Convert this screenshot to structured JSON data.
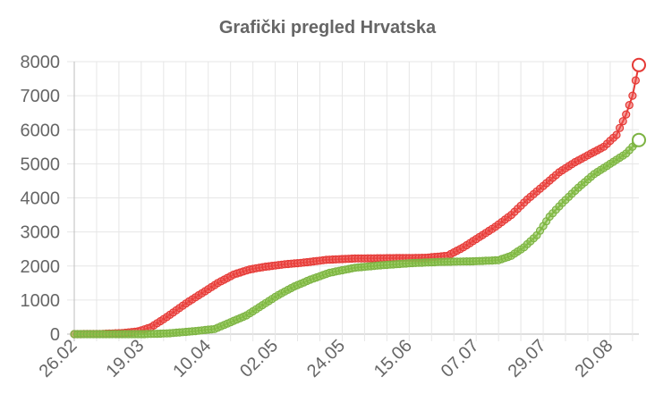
{
  "chart_data": {
    "type": "line",
    "title": "Grafički pregled Hrvatska",
    "xlabel": "",
    "ylabel": "",
    "ylim": [
      0,
      8000
    ],
    "yticks": [
      "0",
      "1000",
      "2000",
      "3000",
      "4000",
      "5000",
      "6000",
      "7000",
      "8000"
    ],
    "xticks": [
      "26.02",
      "19.03",
      "10.04",
      "02.05",
      "24.05",
      "15.06",
      "07.07",
      "29.07",
      "20.08"
    ],
    "x_start": "2020-02-26",
    "x_end": "2020-08-21",
    "grid": true,
    "legend": "none",
    "series": [
      {
        "color": "#e53935",
        "fill": "rgba(239,83,80,0.55)",
        "points": [
          [
            "2020-02-26",
            0
          ],
          [
            "2020-03-05",
            5
          ],
          [
            "2020-03-12",
            30
          ],
          [
            "2020-03-17",
            80
          ],
          [
            "2020-03-21",
            200
          ],
          [
            "2020-03-26",
            500
          ],
          [
            "2020-04-01",
            900
          ],
          [
            "2020-04-06",
            1200
          ],
          [
            "2020-04-11",
            1500
          ],
          [
            "2020-04-16",
            1750
          ],
          [
            "2020-04-21",
            1900
          ],
          [
            "2020-04-26",
            1980
          ],
          [
            "2020-05-02",
            2050
          ],
          [
            "2020-05-08",
            2100
          ],
          [
            "2020-05-15",
            2180
          ],
          [
            "2020-05-24",
            2220
          ],
          [
            "2020-06-05",
            2230
          ],
          [
            "2020-06-15",
            2240
          ],
          [
            "2020-06-22",
            2300
          ],
          [
            "2020-06-27",
            2550
          ],
          [
            "2020-07-02",
            2850
          ],
          [
            "2020-07-07",
            3150
          ],
          [
            "2020-07-12",
            3500
          ],
          [
            "2020-07-17",
            3950
          ],
          [
            "2020-07-22",
            4350
          ],
          [
            "2020-07-27",
            4750
          ],
          [
            "2020-08-01",
            5050
          ],
          [
            "2020-08-06",
            5300
          ],
          [
            "2020-08-10",
            5500
          ],
          [
            "2020-08-14",
            5850
          ],
          [
            "2020-08-17",
            6450
          ],
          [
            "2020-08-19",
            7000
          ],
          [
            "2020-08-21",
            7900
          ]
        ]
      },
      {
        "color": "#7cb342",
        "fill": "rgba(139,195,74,0.55)",
        "points": [
          [
            "2020-02-26",
            0
          ],
          [
            "2020-03-19",
            0
          ],
          [
            "2020-03-26",
            20
          ],
          [
            "2020-04-03",
            80
          ],
          [
            "2020-04-10",
            150
          ],
          [
            "2020-04-15",
            350
          ],
          [
            "2020-04-20",
            550
          ],
          [
            "2020-04-25",
            850
          ],
          [
            "2020-04-30",
            1150
          ],
          [
            "2020-05-05",
            1400
          ],
          [
            "2020-05-10",
            1600
          ],
          [
            "2020-05-16",
            1800
          ],
          [
            "2020-05-24",
            1950
          ],
          [
            "2020-06-01",
            2020
          ],
          [
            "2020-06-10",
            2080
          ],
          [
            "2020-06-20",
            2120
          ],
          [
            "2020-07-01",
            2140
          ],
          [
            "2020-07-08",
            2170
          ],
          [
            "2020-07-12",
            2300
          ],
          [
            "2020-07-16",
            2550
          ],
          [
            "2020-07-20",
            2900
          ],
          [
            "2020-07-24",
            3450
          ],
          [
            "2020-07-28",
            3850
          ],
          [
            "2020-08-02",
            4300
          ],
          [
            "2020-08-07",
            4700
          ],
          [
            "2020-08-12",
            5000
          ],
          [
            "2020-08-17",
            5300
          ],
          [
            "2020-08-21",
            5700
          ]
        ]
      }
    ]
  }
}
